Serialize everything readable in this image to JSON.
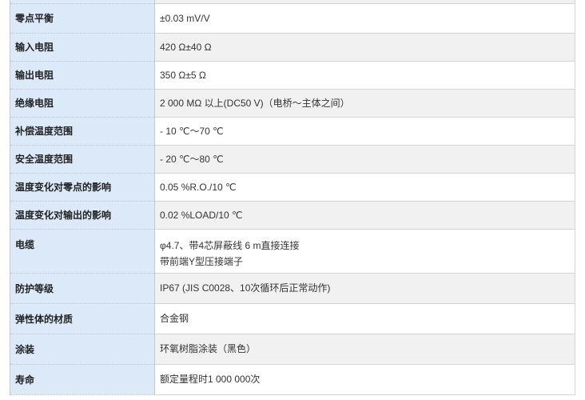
{
  "rows": [
    {
      "label": "",
      "value": ""
    },
    {
      "label": "零点平衡",
      "value": "±0.03 mV/V"
    },
    {
      "label": "输入电阻",
      "value": "420 Ω±40 Ω"
    },
    {
      "label": "输出电阻",
      "value": "350 Ω±5 Ω"
    },
    {
      "label": "绝缘电阻",
      "value": "2 000 MΩ 以上(DC50 V)（电桥～主体之间）"
    },
    {
      "label": "补偿温度范围",
      "value": " - 10 ℃～70 ℃"
    },
    {
      "label": "安全温度范围",
      "value": " - 20 ℃～80 ℃"
    },
    {
      "label": "温度变化对零点的影响",
      "value": "0.05 %R.O./10 ℃"
    },
    {
      "label": "温度变化对输出的影响",
      "value": "0.02 %LOAD/10 ℃"
    },
    {
      "label": "电缆",
      "value": "φ4.7、带4芯屏蔽线 6 m直接连接",
      "value2": "带前端Y型压接端子"
    },
    {
      "label": "防护等级",
      "value": "IP67 (JIS C0028、10次循环后正常动作)"
    },
    {
      "label": "弹性体的材质",
      "value": "合金钢"
    },
    {
      "label": "涂装",
      "value": "环氧树脂涂装（黑色）"
    },
    {
      "label": "寿命",
      "value": "额定量程时1 000 000次"
    }
  ]
}
